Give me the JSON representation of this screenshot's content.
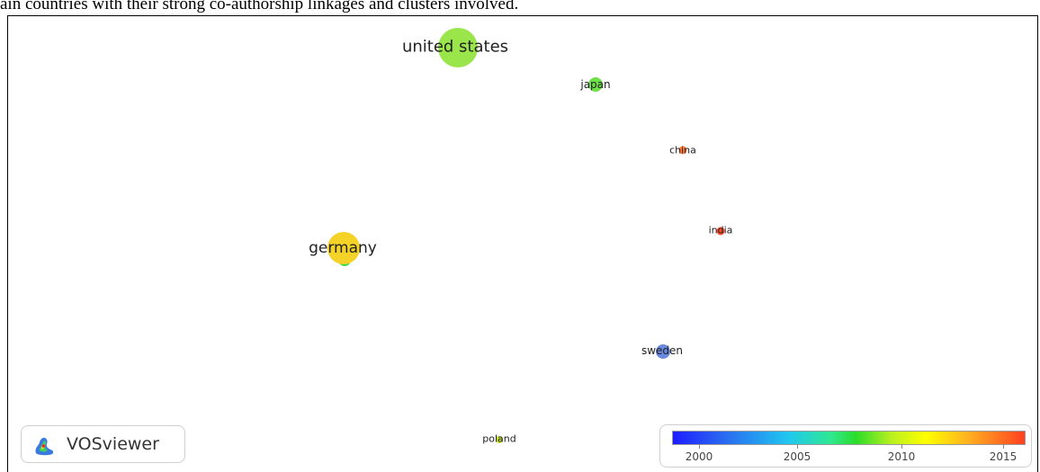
{
  "caption": "ain countries with their strong co-authorship linkages and clusters involved.",
  "nodes": [
    {
      "name": "united states",
      "label": "united states",
      "color": "#9ae64a"
    },
    {
      "name": "japan",
      "label": "japan",
      "color": "#6ee04a"
    },
    {
      "name": "china",
      "label": "china",
      "color": "#ff7a3a"
    },
    {
      "name": "india",
      "label": "india",
      "color": "#ff4a2a"
    },
    {
      "name": "germany",
      "label": "germany",
      "color": "#f4d228"
    },
    {
      "name": "sweden",
      "label": "sweden",
      "color": "#6a8ae0"
    },
    {
      "name": "poland",
      "label": "poland",
      "color": "#c8e030"
    }
  ],
  "logo": {
    "text": "VOSviewer"
  },
  "legend": {
    "ticks": [
      "2000",
      "2005",
      "2010",
      "2015"
    ],
    "colors": [
      "#1e1eff",
      "#20c8f0",
      "#2adc2a",
      "#ffff00",
      "#ff4020"
    ]
  }
}
